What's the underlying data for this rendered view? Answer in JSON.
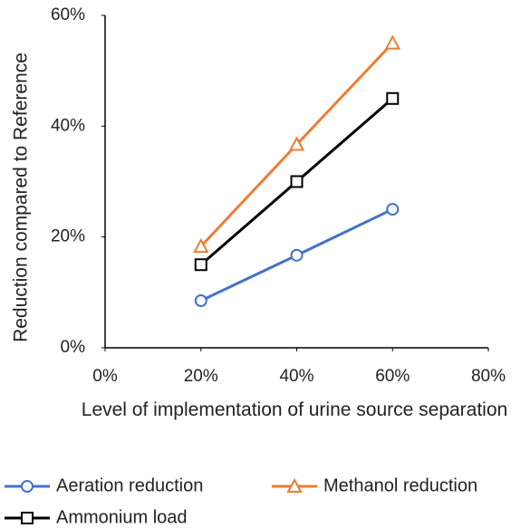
{
  "chart_data": {
    "type": "line",
    "x_label": "Level of implementation of urine source separation",
    "y_label": "Reduction compared to Reference",
    "x": [
      20,
      40,
      60
    ],
    "xlim": [
      0,
      80
    ],
    "xticks": [
      {
        "value": 0,
        "label": "0%"
      },
      {
        "value": 20,
        "label": "20%"
      },
      {
        "value": 40,
        "label": "40%"
      },
      {
        "value": 60,
        "label": "60%"
      },
      {
        "value": 80,
        "label": "80%"
      }
    ],
    "ylim": [
      0,
      60
    ],
    "yticks": [
      {
        "value": 0,
        "label": "0%"
      },
      {
        "value": 20,
        "label": "20%"
      },
      {
        "value": 40,
        "label": "40%"
      },
      {
        "value": 60,
        "label": "60%"
      }
    ],
    "grid": false,
    "legend": "bottom",
    "series": [
      {
        "name": "Aeration reduction",
        "color": "#4472c4",
        "marker": "circle",
        "values": [
          8.5,
          16.7,
          25
        ]
      },
      {
        "name": "Methanol reduction",
        "color": "#ed7d31",
        "marker": "triangle",
        "values": [
          18.3,
          36.7,
          55
        ]
      },
      {
        "name": "Ammonium load",
        "color": "#000000",
        "marker": "square",
        "values": [
          15,
          30,
          45
        ]
      }
    ]
  }
}
